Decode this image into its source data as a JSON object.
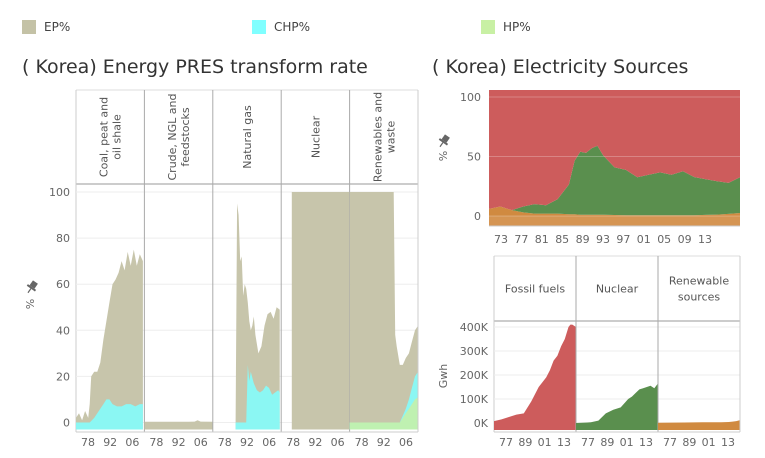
{
  "legend": [
    {
      "label": "EP%",
      "color": "#c4c2a6"
    },
    {
      "label": "CHP%",
      "color": "#80ffff"
    },
    {
      "label": "HP%",
      "color": "#c8f0a4"
    }
  ],
  "left_title": "( Korea) Energy PRES transform rate",
  "right_title": "( Korea) Electricity Sources",
  "chart_data": [
    {
      "type": "area",
      "title": "( Korea) Energy PRES transform rate",
      "ylabel": "%",
      "ylim": [
        0,
        100
      ],
      "yticks": [
        0,
        20,
        40,
        60,
        80,
        100
      ],
      "xticks": [
        "78",
        "92",
        "06"
      ],
      "xlim": [
        1971,
        2016
      ],
      "panels": [
        {
          "name": "Coal, peat and oil shale",
          "header_lines": [
            "Coal, peat and",
            "oil shale"
          ],
          "series": [
            {
              "name": "EP%",
              "x": [
                1971,
                1973,
                1975,
                1977,
                1979,
                1980,
                1981,
                1983,
                1985,
                1987,
                1989,
                1991,
                1993,
                1995,
                1997,
                1999,
                2001,
                2003,
                2005,
                2007,
                2009,
                2011,
                2013,
                2015
              ],
              "values": [
                2,
                4,
                1,
                5,
                2,
                8,
                20,
                22,
                22,
                26,
                36,
                44,
                52,
                60,
                62,
                65,
                70,
                66,
                74,
                68,
                75,
                68,
                73,
                70
              ]
            },
            {
              "name": "CHP%",
              "x": [
                1971,
                1980,
                1983,
                1986,
                1989,
                1991,
                1993,
                1995,
                1998,
                2001,
                2004,
                2007,
                2010,
                2013,
                2015
              ],
              "values": [
                0,
                0,
                2,
                5,
                8,
                10,
                10,
                8,
                7,
                7,
                8,
                8,
                7,
                8,
                8
              ]
            }
          ]
        },
        {
          "name": "Crude, NGL and feedstocks",
          "header_lines": [
            "Crude, NGL and",
            "feedstocks"
          ],
          "series": [
            {
              "name": "EP%",
              "x": [
                1971,
                2000,
                2004,
                2006,
                2008,
                2016
              ],
              "values": [
                0.3,
                0.3,
                0.4,
                1,
                0.4,
                0.3
              ]
            }
          ]
        },
        {
          "name": "Natural gas",
          "header_lines": [
            "Natural gas"
          ],
          "series": [
            {
              "name": "EP%",
              "x": [
                1986,
                1987,
                1988,
                1989,
                1990,
                1991,
                1992,
                1993,
                1994,
                1995,
                1996,
                1997,
                1998,
                1999,
                2001,
                2003,
                2005,
                2007,
                2009,
                2011,
                2013,
                2015
              ],
              "values": [
                0,
                95,
                90,
                70,
                72,
                55,
                60,
                58,
                52,
                44,
                40,
                42,
                46,
                38,
                30,
                33,
                42,
                47,
                48,
                45,
                50,
                49
              ]
            },
            {
              "name": "CHP%",
              "x": [
                1986,
                1993,
                1994,
                1995,
                1996,
                1998,
                2000,
                2002,
                2004,
                2006,
                2008,
                2010,
                2012,
                2014,
                2015
              ],
              "values": [
                0,
                0,
                25,
                18,
                22,
                17,
                14,
                13,
                14,
                16,
                15,
                12,
                13,
                14,
                13
              ]
            }
          ]
        },
        {
          "name": "Nuclear",
          "header_lines": [
            "Nuclear"
          ],
          "series": [
            {
              "name": "EP%",
              "x": [
                1978,
                2016
              ],
              "values": [
                100,
                100
              ]
            }
          ]
        },
        {
          "name": "Renewables and waste",
          "header_lines": [
            "Renewables and",
            "waste"
          ],
          "series": [
            {
              "name": "EP%",
              "x": [
                1971,
                2000,
                2001,
                2002,
                2004,
                2006,
                2008,
                2010,
                2012,
                2014,
                2016
              ],
              "values": [
                100,
                100,
                38,
                33,
                25,
                25,
                28,
                30,
                35,
                40,
                42
              ]
            },
            {
              "name": "CHP%",
              "x": [
                1971,
                2004,
                2006,
                2008,
                2010,
                2012,
                2014,
                2016
              ],
              "values": [
                0,
                0,
                3,
                6,
                10,
                15,
                20,
                22
              ]
            },
            {
              "name": "HP%",
              "x": [
                1971,
                2004,
                2006,
                2008,
                2010,
                2012,
                2014,
                2016
              ],
              "values": [
                0,
                0,
                2,
                4,
                6,
                8,
                10,
                11
              ]
            }
          ]
        }
      ]
    },
    {
      "type": "area",
      "title": "( Korea) Electricity Sources",
      "ylabel": "%",
      "ylim": [
        0,
        100
      ],
      "yticks": [
        0,
        50,
        100
      ],
      "xticks": [
        "73",
        "77",
        "81",
        "85",
        "89",
        "93",
        "97",
        "01",
        "05",
        "09",
        "13"
      ],
      "x": [
        1971,
        1973,
        1975,
        1977,
        1979,
        1981,
        1983,
        1985,
        1986,
        1987,
        1988,
        1989,
        1990,
        1991,
        1993,
        1995,
        1997,
        1999,
        2001,
        2003,
        2005,
        2007,
        2009,
        2011,
        2013,
        2015
      ],
      "series": [
        {
          "name": "Renewable sources",
          "color": "#d08a40",
          "values": [
            6,
            8,
            5,
            3,
            2,
            2,
            2,
            1.5,
            1.5,
            1,
            1,
            1,
            1,
            1,
            0.8,
            0.7,
            0.6,
            0.6,
            0.6,
            0.6,
            0.6,
            0.7,
            0.9,
            1.2,
            1.8,
            2.5
          ]
        },
        {
          "name": "Nuclear",
          "color": "#5a8f4e",
          "values": [
            0,
            0,
            0,
            5,
            8,
            7,
            12,
            25,
            45,
            53,
            52,
            56,
            58,
            50,
            40,
            38,
            32,
            34,
            36,
            34,
            37,
            32,
            30,
            28,
            26,
            30
          ]
        },
        {
          "name": "Fossil fuels",
          "color": "#cd5c5c",
          "values": [
            94,
            92,
            95,
            92,
            90,
            91,
            86,
            73.5,
            53.5,
            46,
            47,
            43,
            41,
            49,
            59.2,
            61.3,
            67.4,
            65.4,
            63.4,
            65.4,
            62.4,
            67.3,
            69.1,
            70.8,
            72.2,
            67.5
          ]
        }
      ]
    },
    {
      "type": "area",
      "ylabel": "Gwh",
      "ylim": [
        0,
        430000
      ],
      "yticks": [
        0,
        100000,
        200000,
        300000,
        400000
      ],
      "ytick_labels": [
        "0K",
        "100K",
        "200K",
        "300K",
        "400K"
      ],
      "xticks": [
        "77",
        "89",
        "01",
        "13"
      ],
      "xlim": [
        1971,
        2015
      ],
      "panels": [
        {
          "name": "Fossil fuels",
          "header_lines": [
            "Fossil fuels"
          ],
          "color": "#cd5c5c",
          "x": [
            1971,
            1975,
            1979,
            1983,
            1987,
            1991,
            1995,
            1999,
            2001,
            2003,
            2005,
            2007,
            2009,
            2011,
            2012,
            2013,
            2015
          ],
          "values": [
            8000,
            15000,
            25000,
            35000,
            40000,
            90000,
            150000,
            190000,
            220000,
            260000,
            280000,
            320000,
            350000,
            400000,
            410000,
            410000,
            400000
          ]
        },
        {
          "name": "Nuclear",
          "header_lines": [
            "Nuclear"
          ],
          "color": "#5a8f4e",
          "x": [
            1971,
            1977,
            1979,
            1983,
            1987,
            1991,
            1995,
            1999,
            2001,
            2003,
            2005,
            2007,
            2009,
            2011,
            2013,
            2015
          ],
          "values": [
            0,
            2000,
            3000,
            10000,
            40000,
            55000,
            65000,
            100000,
            110000,
            125000,
            140000,
            145000,
            150000,
            155000,
            145000,
            165000
          ]
        },
        {
          "name": "Renewable sources",
          "header_lines": [
            "Renewable",
            "sources"
          ],
          "color": "#d08a40",
          "x": [
            1971,
            1985,
            1995,
            2001,
            2005,
            2009,
            2011,
            2013,
            2015
          ],
          "values": [
            1000,
            2000,
            3000,
            3000,
            3000,
            4000,
            6000,
            8000,
            12000
          ]
        }
      ]
    }
  ]
}
